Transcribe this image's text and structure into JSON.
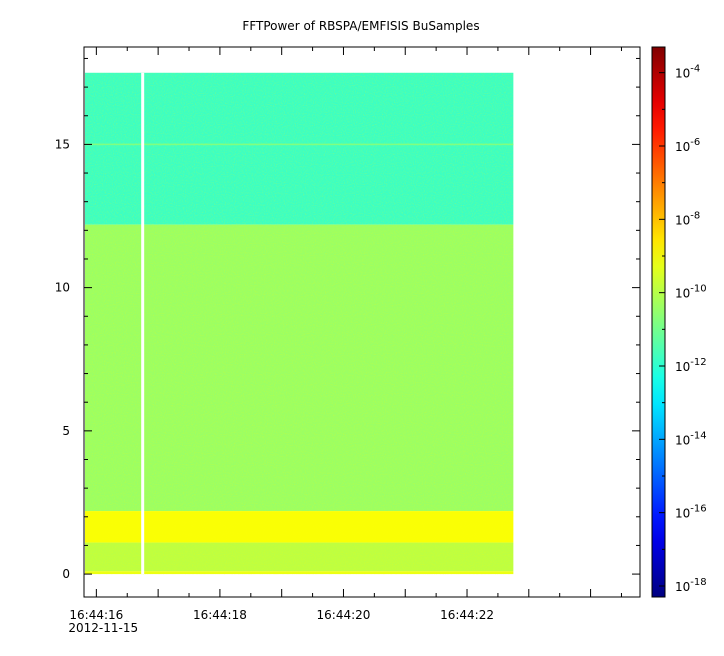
{
  "chart_data": {
    "type": "heatmap",
    "title": "FFTPower of RBSPA/EMFISIS  BuSamples",
    "xlabel": "",
    "ylabel": "",
    "x_ticks": [
      "16:44:16",
      "16:44:18",
      "16:44:20",
      "16:44:22"
    ],
    "x_date_label": "2012-11-15",
    "x_range_seconds": [
      15.8,
      24.8
    ],
    "y_ticks": [
      0,
      5,
      10,
      15
    ],
    "ylim": [
      -0.8,
      18.4
    ],
    "data_x_range_seconds": [
      15.8,
      22.75
    ],
    "data_y_range": [
      0,
      17.5
    ],
    "gap_x_seconds": 16.75,
    "log_scale_colorbar": true,
    "colorbar_ticks": [
      {
        "base": "10",
        "exp": "-4",
        "value": -4
      },
      {
        "base": "10",
        "exp": "-6",
        "value": -6
      },
      {
        "base": "10",
        "exp": "-8",
        "value": -8
      },
      {
        "base": "10",
        "exp": "-10",
        "value": -10
      },
      {
        "base": "10",
        "exp": "-12",
        "value": -12
      },
      {
        "base": "10",
        "exp": "-14",
        "value": -14
      },
      {
        "base": "10",
        "exp": "-16",
        "value": -16
      },
      {
        "base": "10",
        "exp": "-18",
        "value": -18
      }
    ],
    "colorbar_range_log10": [
      -18.3,
      -3.3
    ],
    "bands": [
      {
        "y_from": 12.2,
        "y_to": 17.5,
        "log10_power": -11.8
      },
      {
        "y_from": 2.2,
        "y_to": 12.2,
        "log10_power": -10.4
      },
      {
        "y_from": 1.1,
        "y_to": 2.2,
        "log10_power": -9.0
      },
      {
        "y_from": 0.1,
        "y_to": 1.1,
        "log10_power": -9.9
      },
      {
        "y_from": 0.0,
        "y_to": 0.1,
        "log10_power": -9.2
      }
    ],
    "line_feature": {
      "y": 15.0,
      "log10_power": -10.8
    }
  }
}
